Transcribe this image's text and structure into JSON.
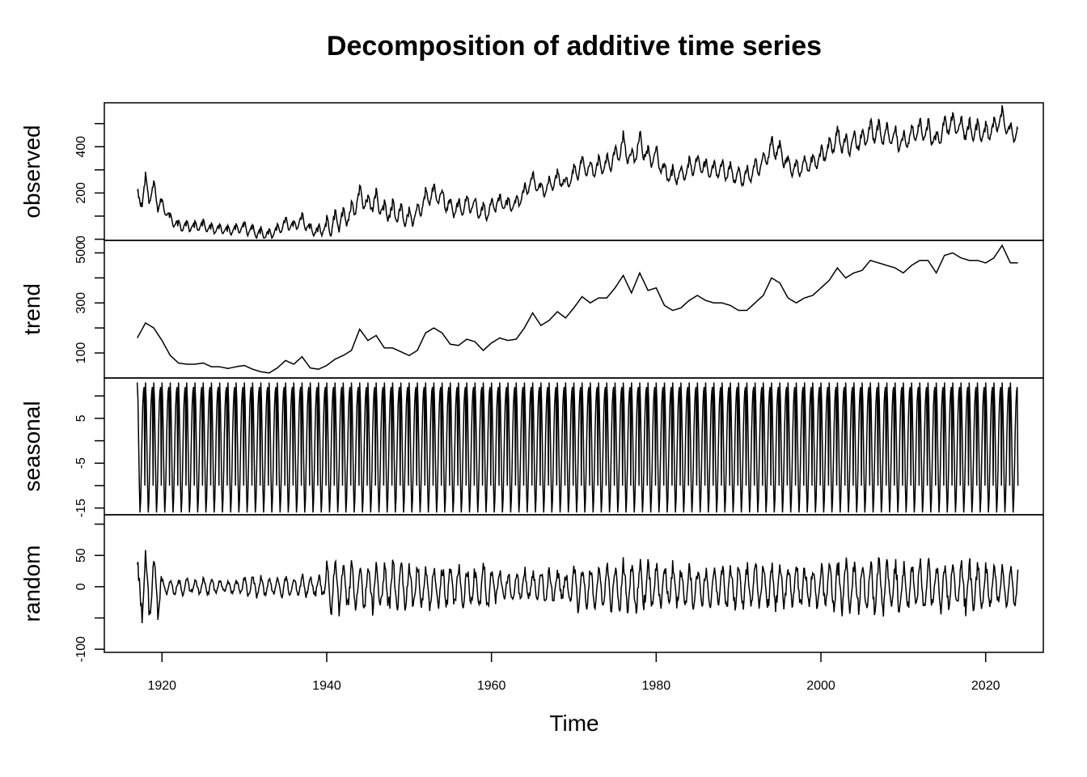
{
  "chart_data": {
    "type": "line",
    "title": "Decomposition of additive time series",
    "xlabel": "Time",
    "xlim": [
      1913,
      2027
    ],
    "x_ticks": [
      1920,
      1940,
      1960,
      1980,
      2000,
      2020
    ],
    "start": 1917.0,
    "frequency": 12,
    "years": 107,
    "panels": [
      {
        "name": "observed",
        "ylabel": "observed",
        "ylim": [
          -5,
          590
        ],
        "ticks": [
          0,
          100,
          200,
          300,
          400,
          500
        ],
        "tick_labels": [
          "0",
          "",
          "200",
          "",
          "400",
          ""
        ]
      },
      {
        "name": "trend",
        "ylabel": "trend",
        "ylim": [
          0,
          550
        ],
        "ticks": [
          100,
          200,
          300,
          400,
          500
        ],
        "tick_labels": [
          "100",
          "",
          "300",
          "",
          "500"
        ]
      },
      {
        "name": "seasonal",
        "ylabel": "seasonal",
        "ylim": [
          -16.5,
          14
        ],
        "ticks": [
          -15,
          -10,
          -5,
          0,
          5,
          10
        ],
        "tick_labels": [
          "-15",
          "",
          "-5",
          "",
          "5",
          ""
        ]
      },
      {
        "name": "random",
        "ylabel": "random",
        "ylim": [
          -105,
          115
        ],
        "ticks": [
          -100,
          -50,
          0,
          50,
          100
        ],
        "tick_labels": [
          "-100",
          "",
          "0",
          "50",
          ""
        ]
      }
    ],
    "trend_yearly": [
      160,
      220,
      200,
      150,
      90,
      60,
      55,
      55,
      60,
      45,
      45,
      38,
      45,
      50,
      35,
      25,
      20,
      40,
      70,
      55,
      85,
      40,
      35,
      50,
      75,
      90,
      110,
      195,
      150,
      170,
      120,
      120,
      105,
      90,
      110,
      180,
      200,
      180,
      135,
      130,
      155,
      145,
      110,
      140,
      160,
      150,
      155,
      200,
      260,
      210,
      230,
      265,
      240,
      280,
      325,
      300,
      320,
      320,
      360,
      410,
      340,
      420,
      350,
      360,
      290,
      270,
      280,
      310,
      330,
      310,
      300,
      300,
      290,
      270,
      270,
      300,
      330,
      400,
      380,
      320,
      300,
      320,
      330,
      360,
      390,
      440,
      400,
      420,
      430,
      470,
      460,
      450,
      440,
      420,
      450,
      470,
      470,
      420,
      490,
      500,
      480,
      470,
      470,
      460,
      480,
      530,
      460
    ],
    "seasonal_monthly": [
      13,
      9,
      0,
      -10,
      -16,
      -13,
      -6,
      2,
      8,
      11,
      12,
      -10
    ],
    "random_amplitude_by_decade": {
      "1910": 55,
      "1920": 15,
      "1930": 20,
      "1940": 45,
      "1950": 40,
      "1960": 30,
      "1970": 45,
      "1980": 40,
      "1990": 40,
      "2000": 50,
      "2010": 45,
      "2020": 40
    }
  }
}
